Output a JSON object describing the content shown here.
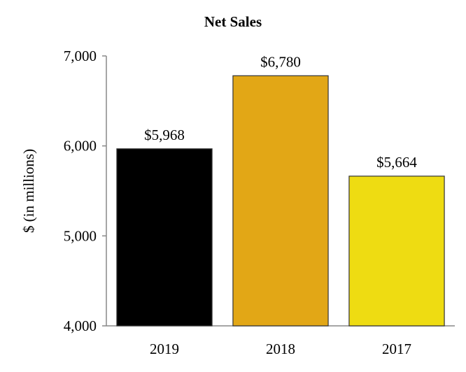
{
  "chart_data": {
    "type": "bar",
    "title": "Net Sales",
    "xlabel": "",
    "ylabel": "$ (in millions)",
    "ylim": [
      4000,
      7000
    ],
    "yticks": [
      4000,
      5000,
      6000,
      7000
    ],
    "ytick_labels": [
      "4,000",
      "5,000",
      "6,000",
      "7,000"
    ],
    "categories": [
      "2019",
      "2018",
      "2017"
    ],
    "values": [
      5968,
      6780,
      5664
    ],
    "value_labels": [
      "$5,968",
      "$6,780",
      "$5,664"
    ],
    "colors": [
      "#000000",
      "#E2A716",
      "#EEDC12"
    ],
    "grid": false,
    "legend": "none"
  }
}
